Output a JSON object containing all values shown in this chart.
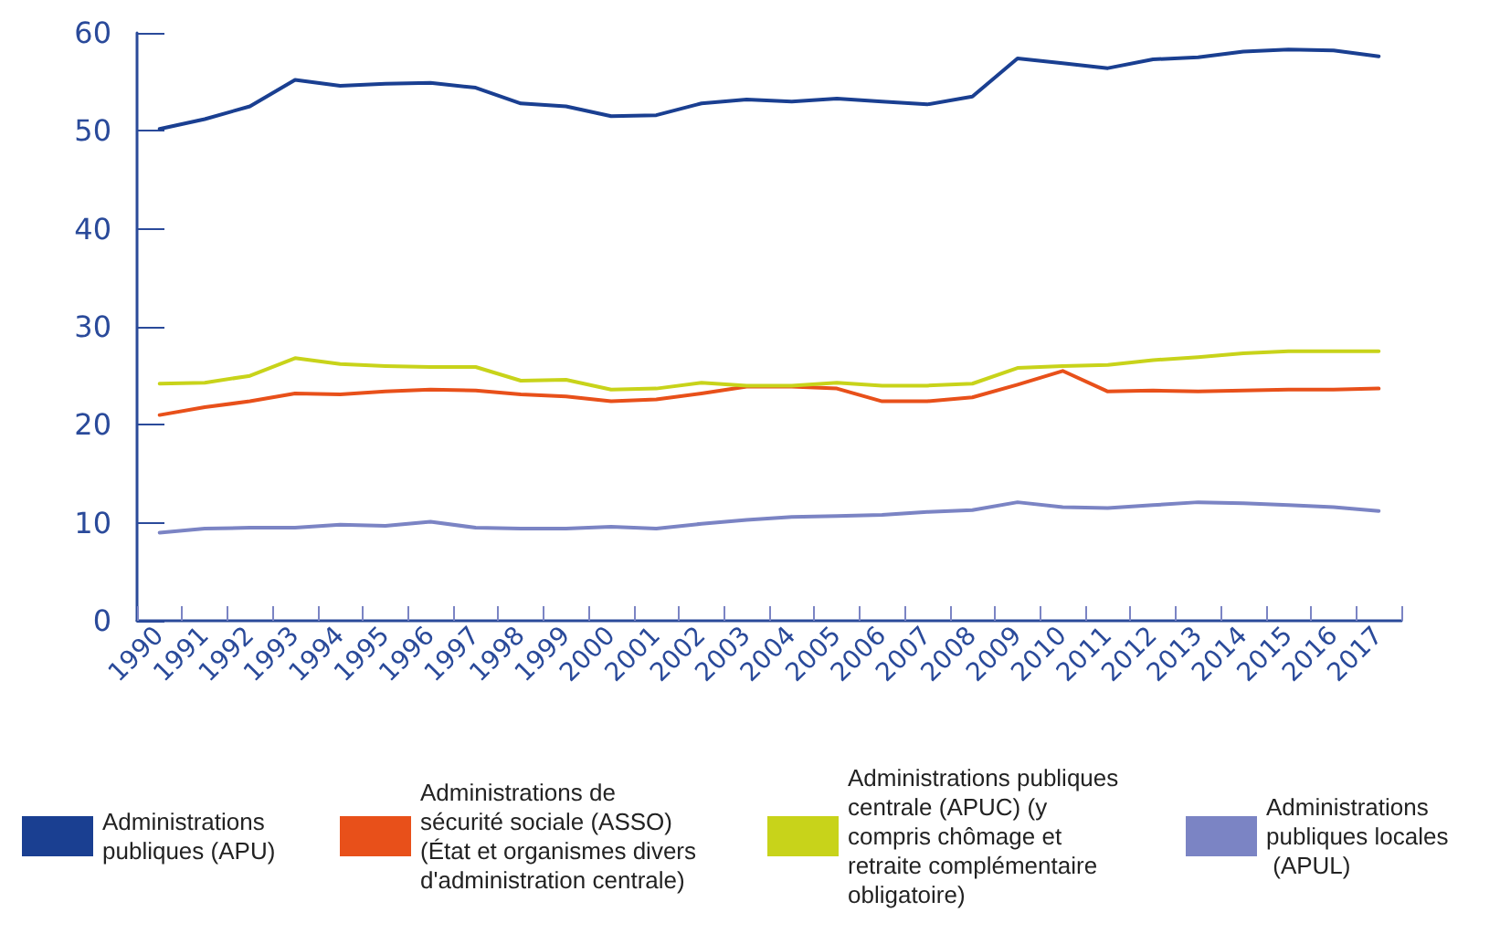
{
  "chart_data": {
    "type": "line",
    "categories": [
      "1990",
      "1991",
      "1992",
      "1993",
      "1994",
      "1995",
      "1996",
      "1997",
      "1998",
      "1999",
      "2000",
      "2001",
      "2002",
      "2003",
      "2004",
      "2005",
      "2006",
      "2007",
      "2008",
      "2009",
      "2010",
      "2011",
      "2012",
      "2013",
      "2014",
      "2015",
      "2016",
      "2017"
    ],
    "series": [
      {
        "name": "Administrations publiques (APU)",
        "color": "#1a3f91",
        "values": [
          50.2,
          51.2,
          52.5,
          55.2,
          54.6,
          54.8,
          54.9,
          54.4,
          52.8,
          52.5,
          51.5,
          51.6,
          52.8,
          53.2,
          53.0,
          53.3,
          53.0,
          52.7,
          53.5,
          57.4,
          56.9,
          56.4,
          57.3,
          57.5,
          58.1,
          58.3,
          58.2,
          57.6
        ]
      },
      {
        "name": "Administrations de sécurité sociale (ASSO) (État et organismes divers d'administration centrale)",
        "color": "#e8501a",
        "values": [
          21.0,
          21.8,
          22.4,
          23.2,
          23.1,
          23.4,
          23.6,
          23.5,
          23.1,
          22.9,
          22.4,
          22.6,
          23.2,
          23.9,
          23.9,
          23.7,
          22.4,
          22.4,
          22.8,
          24.1,
          25.5,
          23.4,
          23.5,
          23.4,
          23.5,
          23.6,
          23.6,
          23.7
        ]
      },
      {
        "name": "Administrations publiques centrale (APUC) (y compris chômage et retraite complémentaire obligatoire)",
        "color": "#c8d31a",
        "values": [
          24.2,
          24.3,
          25.0,
          26.8,
          26.2,
          26.0,
          25.9,
          25.9,
          24.5,
          24.6,
          23.6,
          23.7,
          24.3,
          24.0,
          24.0,
          24.3,
          24.0,
          24.0,
          24.2,
          25.8,
          26.0,
          26.1,
          26.6,
          26.9,
          27.3,
          27.5,
          27.5,
          27.5
        ]
      },
      {
        "name": "Administrations publiques locales (APUL)",
        "color": "#7b84c4",
        "values": [
          9.0,
          9.4,
          9.5,
          9.5,
          9.8,
          9.7,
          10.1,
          9.5,
          9.4,
          9.4,
          9.6,
          9.4,
          9.9,
          10.3,
          10.6,
          10.7,
          10.8,
          11.1,
          11.3,
          12.1,
          11.6,
          11.5,
          11.8,
          12.1,
          12.0,
          11.8,
          11.6,
          11.2
        ]
      }
    ],
    "ylim": [
      0,
      60
    ],
    "yticks": [
      0,
      10,
      20,
      30,
      40,
      50,
      60
    ],
    "grid": false,
    "legend": "bottom",
    "marker": "none",
    "line_style": "solid"
  }
}
